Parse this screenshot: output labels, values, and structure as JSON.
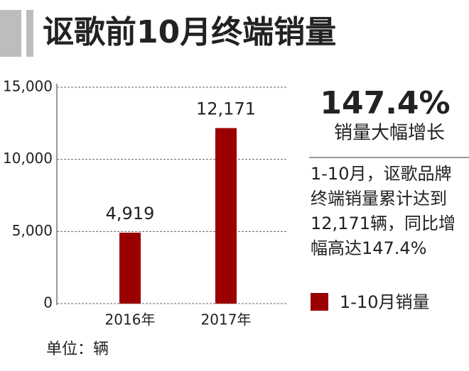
{
  "chart_data": {
    "type": "bar",
    "title": "讴歌前10月终端销量",
    "categories": [
      "2016年",
      "2017年"
    ],
    "series": [
      {
        "name": "1-10月销量",
        "color": "#9b0000",
        "values": [
          4919,
          12171
        ],
        "value_labels": [
          "4,919",
          "12,171"
        ]
      }
    ],
    "ylim": [
      0,
      15000
    ],
    "yticks": [
      0,
      {
        "value": 5000,
        "label": "5,000"
      },
      {
        "value": 10000,
        "label": "10,000"
      },
      {
        "value": 15000,
        "label": "15,000"
      }
    ],
    "grid": true,
    "unit": "单位：辆",
    "highlight": "147.4%",
    "highlight_caption": "销量大幅增长",
    "note": [
      "1-10月，讴歌品牌",
      "终端销量累计达到",
      "12,171辆，同比增",
      "幅高达147.4%"
    ]
  }
}
